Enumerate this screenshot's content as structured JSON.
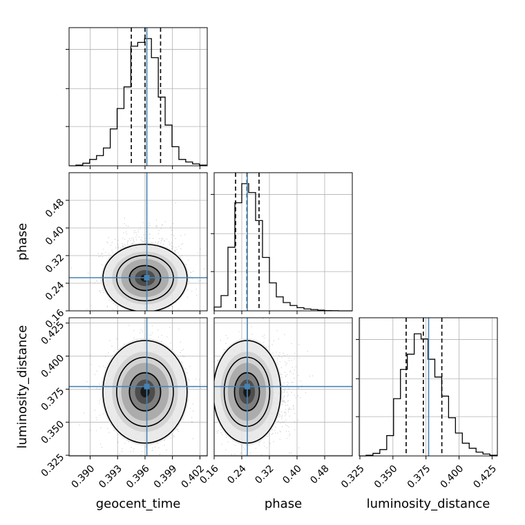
{
  "chart_data": {
    "type": "corner",
    "parameters": [
      "geocent_time",
      "phase",
      "luminosity_distance"
    ],
    "axis_labels": {
      "geocent_time": "geocent_time",
      "phase": "phase",
      "luminosity_distance": "luminosity_distance"
    },
    "ranges": {
      "geocent_time": [
        0.3877,
        0.4028
      ],
      "phase": [
        0.16,
        0.56
      ],
      "luminosity_distance": [
        0.3245,
        0.429
      ]
    },
    "ticks": {
      "geocent_time": [
        "0.390",
        "0.393",
        "0.396",
        "0.399",
        "0.402"
      ],
      "phase": [
        "0.16",
        "0.24",
        "0.32",
        "0.40",
        "0.48"
      ],
      "luminosity_distance": [
        "0.325",
        "0.350",
        "0.375",
        "0.400",
        "0.425"
      ]
    },
    "injection": {
      "geocent_time": 0.3962,
      "phase": 0.256,
      "luminosity_distance": 0.377
    },
    "quantiles": {
      "geocent_time": [
        0.3945,
        0.396,
        0.3977
      ],
      "phase": [
        0.222,
        0.255,
        0.29
      ],
      "luminosity_distance": [
        0.36,
        0.373,
        0.387
      ]
    },
    "histograms": {
      "geocent_time": {
        "edges": [
          0.3877,
          0.38845,
          0.3892,
          0.38995,
          0.3907,
          0.39145,
          0.3922,
          0.39295,
          0.3937,
          0.39445,
          0.3952,
          0.39595,
          0.3967,
          0.39745,
          0.3982,
          0.39895,
          0.3997,
          0.40045,
          0.4012,
          0.40195,
          0.4027
        ],
        "counts": [
          0,
          0.005,
          0.02,
          0.05,
          0.08,
          0.14,
          0.29,
          0.45,
          0.62,
          0.94,
          0.97,
          1.0,
          0.85,
          0.54,
          0.32,
          0.15,
          0.05,
          0.03,
          0.015,
          0.005
        ]
      },
      "phase": {
        "edges": [
          0.16,
          0.18,
          0.2,
          0.22,
          0.24,
          0.26,
          0.28,
          0.3,
          0.32,
          0.34,
          0.36,
          0.38,
          0.4,
          0.42,
          0.44,
          0.46,
          0.48,
          0.5,
          0.52,
          0.54,
          0.56
        ],
        "counts": [
          0.03,
          0.12,
          0.5,
          0.85,
          1.0,
          0.93,
          0.71,
          0.42,
          0.22,
          0.11,
          0.065,
          0.042,
          0.025,
          0.015,
          0.01,
          0.005,
          0.002,
          0.001,
          0,
          0
        ]
      },
      "luminosity_distance": {
        "edges": [
          0.3245,
          0.3297,
          0.3349,
          0.3401,
          0.3453,
          0.3505,
          0.3557,
          0.3609,
          0.3661,
          0.3713,
          0.3765,
          0.3817,
          0.3869,
          0.3921,
          0.3973,
          0.4025,
          0.4077,
          0.4129,
          0.4181,
          0.4233,
          0.4285
        ],
        "counts": [
          0,
          0.005,
          0.02,
          0.05,
          0.16,
          0.45,
          0.68,
          0.8,
          0.96,
          0.92,
          0.76,
          0.62,
          0.47,
          0.3,
          0.18,
          0.1,
          0.06,
          0.03,
          0.015,
          0.005
        ]
      }
    },
    "grid": true,
    "colors": {
      "truth": "#4682b4",
      "histogram": "#000000",
      "quantile": "#000000",
      "grid": "#b0b0b0",
      "points": "#555555"
    }
  }
}
